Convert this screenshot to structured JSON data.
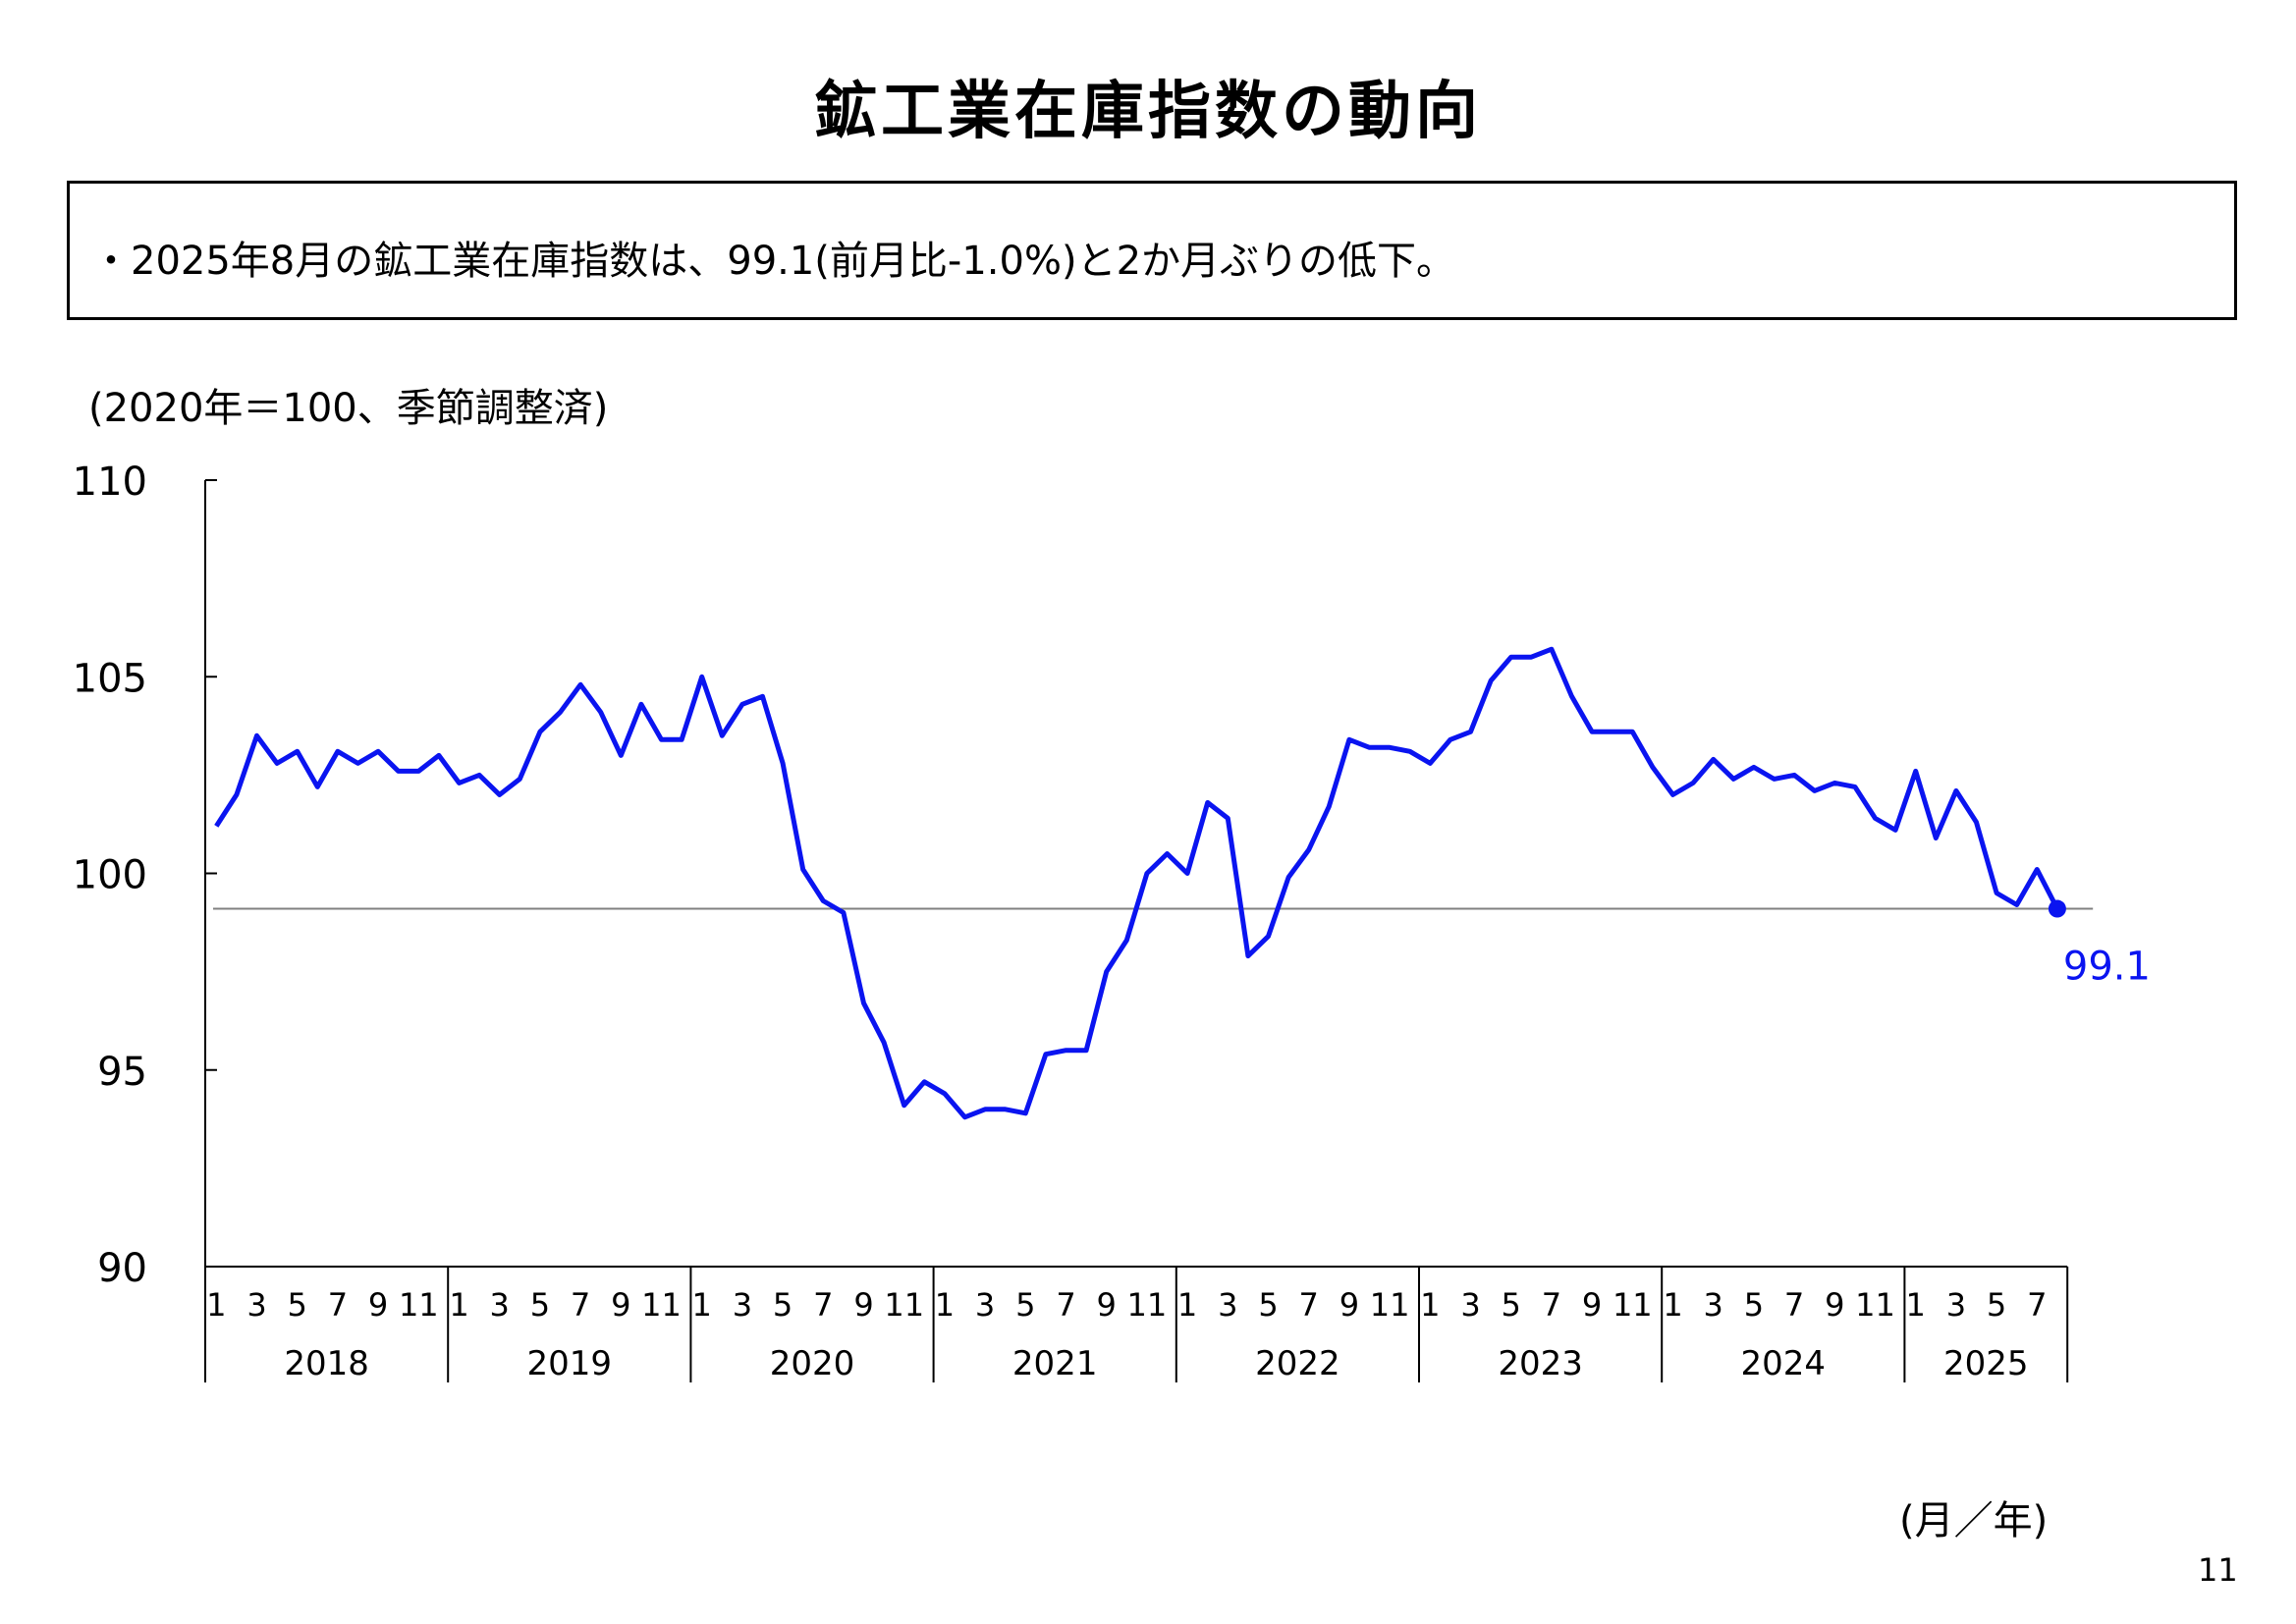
{
  "title": "鉱工業在庫指数の動向",
  "summary": "・2025年8月の鉱工業在庫指数は、99.1(前月比-1.0%)と2か月ぶりの低下。",
  "unit_note": "(2020年＝100、季節調整済)",
  "axis_unit": "(月／年)",
  "page_number": "11",
  "colors": {
    "series": "#0a14f0",
    "reference_line": "#808080",
    "axis": "#000000",
    "last_label": "#0a14f0"
  },
  "chart_data": {
    "type": "line",
    "ylim": [
      90,
      110
    ],
    "yticks": [
      90,
      95,
      100,
      105,
      110
    ],
    "years": [
      "2018",
      "2019",
      "2020",
      "2021",
      "2022",
      "2023",
      "2024",
      "2025"
    ],
    "month_tick_labels": [
      "1",
      "3",
      "5",
      "7",
      "9",
      "11"
    ],
    "reference_value": 99.1,
    "last_label": "99.1",
    "series": [
      {
        "values": [
          101.2,
          102.0,
          103.5,
          102.8,
          103.1,
          102.2,
          103.1,
          102.8,
          103.1,
          102.6,
          102.6,
          103.0,
          102.3,
          102.5,
          102.0,
          102.4,
          103.6,
          104.1,
          104.8,
          104.1,
          103.0,
          104.3,
          103.4,
          103.4,
          105.0,
          103.5,
          104.3,
          104.5,
          102.8,
          100.1,
          99.3,
          99.0,
          96.7,
          95.7,
          94.1,
          94.7,
          94.4,
          93.8,
          94.0,
          94.0,
          93.9,
          95.4,
          95.5,
          95.5,
          97.5,
          98.3,
          100.0,
          100.5,
          100.0,
          101.8,
          101.4,
          97.9,
          98.4,
          99.9,
          100.6,
          101.7,
          103.4,
          103.2,
          103.2,
          103.1,
          102.8,
          103.4,
          103.6,
          104.9,
          105.5,
          105.5,
          105.7,
          104.5,
          103.6,
          103.6,
          103.6,
          102.7,
          102.0,
          102.3,
          102.9,
          102.4,
          102.7,
          102.4,
          102.5,
          102.1,
          102.3,
          102.2,
          101.4,
          101.1,
          102.6,
          100.9,
          102.1,
          101.3,
          99.5,
          99.2,
          100.1,
          99.1
        ]
      }
    ]
  }
}
